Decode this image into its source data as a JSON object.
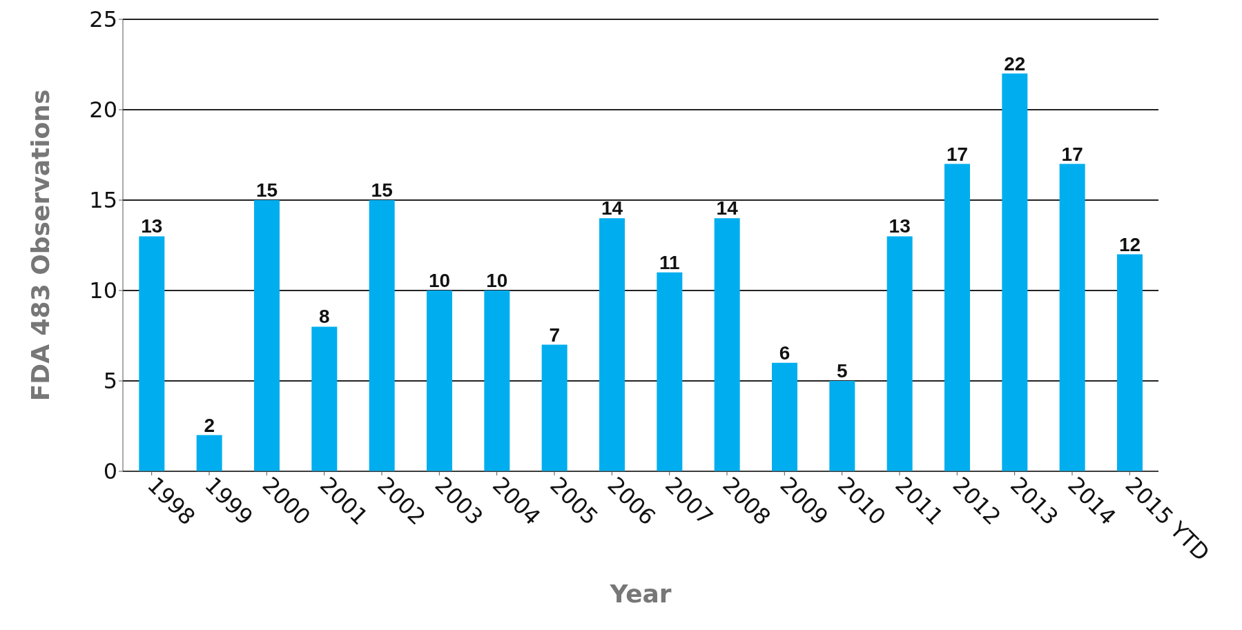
{
  "chart_data": {
    "type": "bar",
    "xlabel": "Year",
    "ylabel": "FDA 483 Observations",
    "categories": [
      "1998",
      "1999",
      "2000",
      "2001",
      "2002",
      "2003",
      "2004",
      "2005",
      "2006",
      "2007",
      "2008",
      "2009",
      "2010",
      "2011",
      "2012",
      "2013",
      "2014",
      "2015 YTD"
    ],
    "values": [
      13,
      2,
      15,
      8,
      15,
      10,
      10,
      7,
      14,
      11,
      14,
      6,
      5,
      13,
      17,
      22,
      17,
      12
    ],
    "color": "#00aeef",
    "ylim": [
      0,
      25
    ],
    "yticks": [
      0,
      5,
      10,
      15,
      20,
      25
    ],
    "grid": "y",
    "data_labels": true
  }
}
